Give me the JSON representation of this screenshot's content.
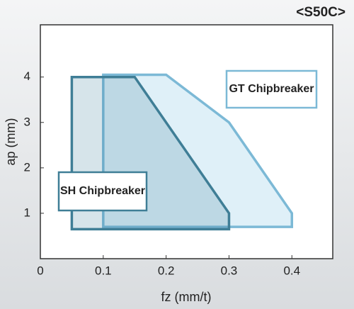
{
  "chart_data": {
    "type": "area",
    "title": "<S50C>",
    "xlabel": "fz (mm/t)",
    "ylabel": "ap (mm)",
    "xlim": [
      0,
      0.465
    ],
    "xticks": [
      0,
      0.1,
      0.2,
      0.3,
      0.4
    ],
    "ylim": [
      0,
      5.15
    ],
    "yticks": [
      1,
      2,
      3,
      4
    ],
    "series": [
      {
        "name": "GT Chipbreaker",
        "color": "#7cb9d6",
        "x": [
          0.1,
          0.1,
          0.2,
          0.3,
          0.4,
          0.4
        ],
        "values": [
          0.7,
          4.05,
          4.05,
          3,
          1,
          0.7
        ]
      },
      {
        "name": "SH Chipbreaker",
        "color": "#3f7e96",
        "x": [
          0.05,
          0.05,
          0.15,
          0.3,
          0.3
        ],
        "values": [
          0.65,
          4,
          4,
          1,
          0.65
        ]
      }
    ]
  }
}
